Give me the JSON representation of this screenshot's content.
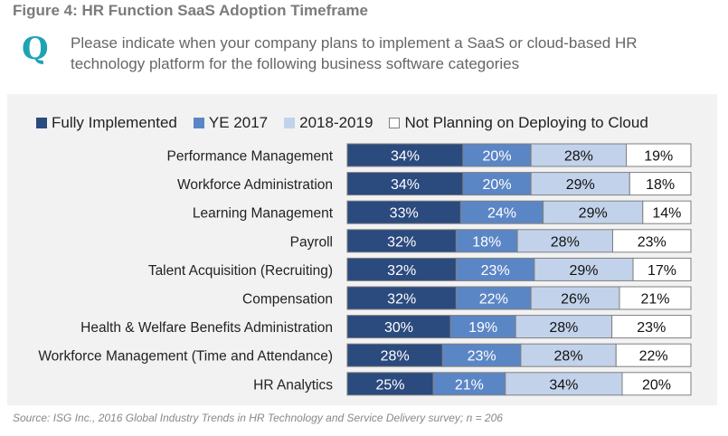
{
  "figure": {
    "title": "Figure 4: HR Function SaaS Adoption Timeframe",
    "q_icon": "Q",
    "question": "Please indicate when your company plans to implement a SaaS or cloud-based HR technology platform for the following business software categories",
    "source": "Source: ISG Inc., 2016 Global Industry Trends in HR Technology and Service Delivery survey; n = 206"
  },
  "colors": {
    "fully": "#2b4a7e",
    "ye2017": "#5b86c6",
    "y20182019": "#c2d2ea",
    "notplanning": "#ffffff",
    "bar_border": "#7f7f7f"
  },
  "chart_data": {
    "type": "bar",
    "orientation": "horizontal",
    "stacked": true,
    "title": "HR Function SaaS Adoption Timeframe",
    "value_format": "percent",
    "legend_position": "top",
    "categories": [
      "Performance Management",
      "Workforce Administration",
      "Learning Management",
      "Payroll",
      "Talent Acquisition (Recruiting)",
      "Compensation",
      "Health & Welfare Benefits Administration",
      "Workforce Management (Time and Attendance)",
      "HR Analytics"
    ],
    "series": [
      {
        "name": "Fully Implemented",
        "color_key": "fully",
        "values": [
          34,
          34,
          33,
          32,
          32,
          32,
          30,
          28,
          25
        ]
      },
      {
        "name": "YE 2017",
        "color_key": "ye2017",
        "values": [
          20,
          20,
          24,
          18,
          23,
          22,
          19,
          23,
          21
        ]
      },
      {
        "name": "2018-2019",
        "color_key": "y20182019",
        "values": [
          28,
          29,
          29,
          28,
          29,
          26,
          28,
          28,
          34
        ]
      },
      {
        "name": "Not Planning on Deploying to Cloud",
        "color_key": "notplanning",
        "values": [
          19,
          18,
          14,
          23,
          17,
          21,
          23,
          22,
          20
        ]
      }
    ]
  }
}
